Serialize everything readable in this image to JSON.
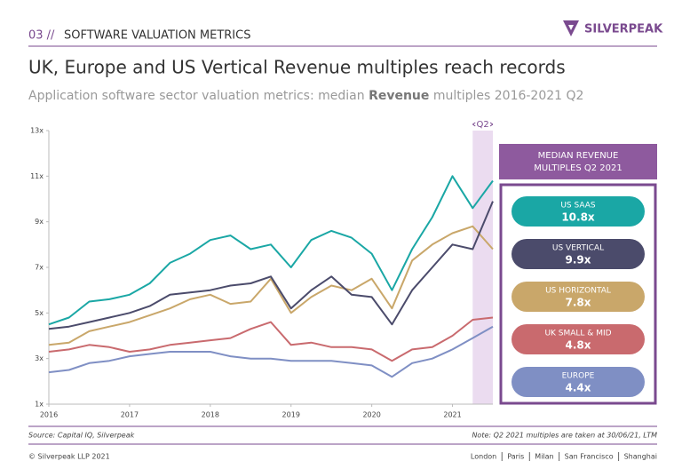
{
  "header": {
    "section": "03 //",
    "title": "SOFTWARE VALUATION METRICS",
    "logo": "SILVERPEAK"
  },
  "chart_data": {
    "type": "line",
    "title": "UK, Europe and US Vertical Revenue multiples reach records",
    "subtitle": [
      "Application software sector valuation metrics: median ",
      "Revenue",
      " multiples 2016-2021 Q2"
    ],
    "x": [
      2016,
      2016.25,
      2016.5,
      2016.75,
      2017,
      2017.25,
      2017.5,
      2017.75,
      2018,
      2018.25,
      2018.5,
      2018.75,
      2019,
      2019.25,
      2019.5,
      2019.75,
      2020,
      2020.25,
      2020.5,
      2020.75,
      2021,
      2021.25,
      2021.5
    ],
    "xlim": [
      2016,
      2021.5
    ],
    "xticks": [
      2016,
      2017,
      2018,
      2019,
      2020,
      2021
    ],
    "ylim": [
      1,
      13
    ],
    "yticks": [
      {
        "value": 1,
        "label": "1x"
      },
      {
        "value": 3,
        "label": "3x"
      },
      {
        "value": 5,
        "label": "5x"
      },
      {
        "value": 7,
        "label": "7x"
      },
      {
        "value": 9,
        "label": "9x"
      },
      {
        "value": 11,
        "label": "11x"
      },
      {
        "value": 13,
        "label": "13x"
      }
    ],
    "highlight": {
      "label": "Q2",
      "x": [
        2021.25,
        2021.5
      ]
    },
    "panel_title": [
      "MEDIAN REVENUE",
      "MULTIPLES Q2 2021"
    ],
    "series": [
      {
        "name": "US SAAS",
        "color": "#1aa7a5",
        "values": [
          4.5,
          4.8,
          5.5,
          5.6,
          5.8,
          6.3,
          7.2,
          7.6,
          8.2,
          8.4,
          7.8,
          8.0,
          7.0,
          8.2,
          8.6,
          8.3,
          7.6,
          6.0,
          7.8,
          9.2,
          11.0,
          9.6,
          10.8
        ],
        "value_labels": [
          null,
          null,
          null,
          null,
          null,
          null,
          null,
          null,
          null,
          null,
          null,
          null,
          null,
          null,
          null,
          null,
          null,
          null,
          null,
          null,
          null,
          null,
          "10.8x"
        ]
      },
      {
        "name": "US VERTICAL",
        "color": "#4b4b6b",
        "values": [
          4.3,
          4.4,
          4.6,
          4.8,
          5.0,
          5.3,
          5.8,
          5.9,
          6.0,
          6.2,
          6.3,
          6.6,
          5.2,
          6.0,
          6.6,
          5.8,
          5.7,
          4.5,
          6.0,
          7.0,
          8.0,
          7.8,
          9.9
        ],
        "value_labels": [
          null,
          null,
          null,
          null,
          null,
          null,
          null,
          null,
          null,
          null,
          null,
          null,
          null,
          null,
          null,
          null,
          null,
          null,
          null,
          null,
          null,
          null,
          "9.9x"
        ]
      },
      {
        "name": "US HORIZONTAL",
        "color": "#c9a76a",
        "values": [
          3.6,
          3.7,
          4.2,
          4.4,
          4.6,
          4.9,
          5.2,
          5.6,
          5.8,
          5.4,
          5.5,
          6.5,
          5.0,
          5.7,
          6.2,
          6.0,
          6.5,
          5.2,
          7.3,
          8.0,
          8.5,
          8.8,
          7.8
        ],
        "value_labels": [
          null,
          null,
          null,
          null,
          null,
          null,
          null,
          null,
          null,
          null,
          null,
          null,
          null,
          null,
          null,
          null,
          null,
          null,
          null,
          null,
          null,
          null,
          "7.8x"
        ]
      },
      {
        "name": "UK SMALL & MID",
        "color": "#c96a6e",
        "values": [
          3.3,
          3.4,
          3.6,
          3.5,
          3.3,
          3.4,
          3.6,
          3.7,
          3.8,
          3.9,
          4.3,
          4.6,
          3.6,
          3.7,
          3.5,
          3.5,
          3.4,
          2.9,
          3.4,
          3.5,
          4.0,
          4.7,
          4.8
        ],
        "value_labels": [
          null,
          null,
          null,
          null,
          null,
          null,
          null,
          null,
          null,
          null,
          null,
          null,
          null,
          null,
          null,
          null,
          null,
          null,
          null,
          null,
          null,
          null,
          "4.8x"
        ]
      },
      {
        "name": "EUROPE",
        "color": "#7f8fc4",
        "values": [
          2.4,
          2.5,
          2.8,
          2.9,
          3.1,
          3.2,
          3.3,
          3.3,
          3.3,
          3.1,
          3.0,
          3.0,
          2.9,
          2.9,
          2.9,
          2.8,
          2.7,
          2.2,
          2.8,
          3.0,
          3.4,
          3.9,
          4.4
        ],
        "value_labels": [
          null,
          null,
          null,
          null,
          null,
          null,
          null,
          null,
          null,
          null,
          null,
          null,
          null,
          null,
          null,
          null,
          null,
          null,
          null,
          null,
          null,
          null,
          "4.4x"
        ]
      }
    ]
  },
  "footer": {
    "source": "Source: Capital IQ, Silverpeak",
    "note": "Note: Q2 2021 multiples are taken at 30/06/21, LTM",
    "copyright": "© Silverpeak LLP 2021",
    "cities": [
      "London",
      "Paris",
      "Milan",
      "San Francisco",
      "Shanghai"
    ]
  }
}
